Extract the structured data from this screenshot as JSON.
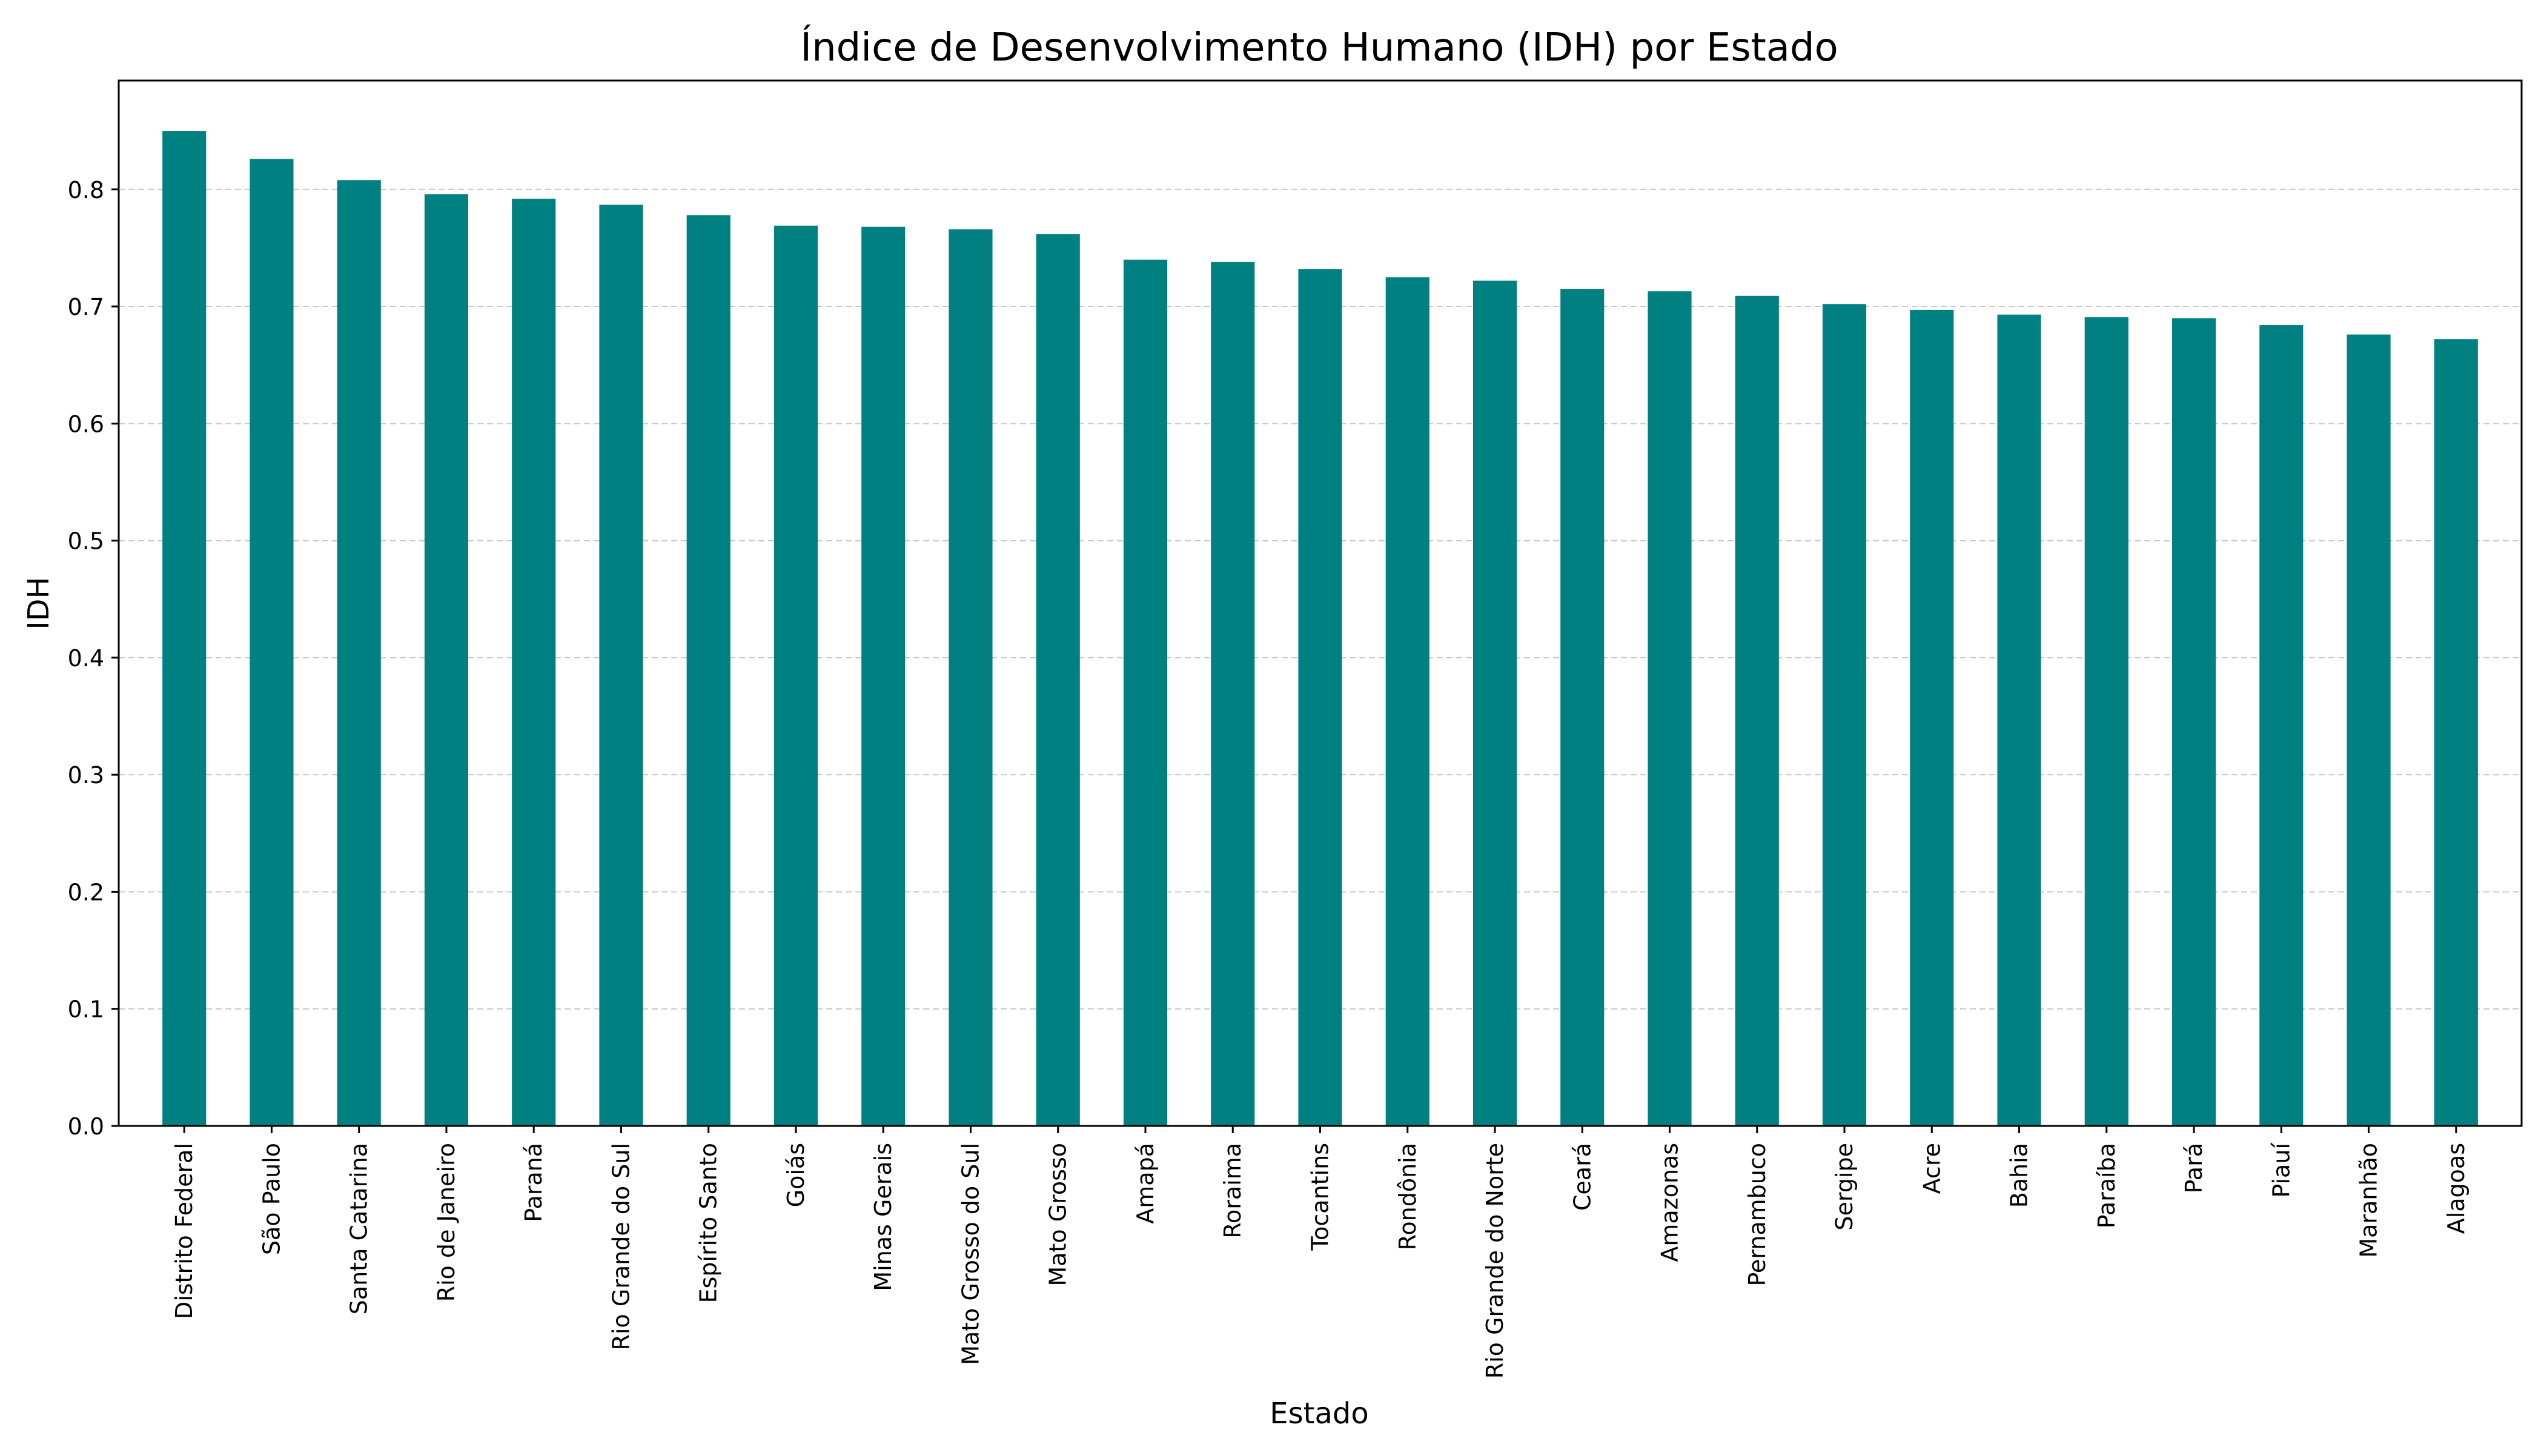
{
  "chart_data": {
    "type": "bar",
    "title": "Índice de Desenvolvimento Humano (IDH) por Estado",
    "xlabel": "Estado",
    "ylabel": "IDH",
    "ylim": [
      0,
      0.893
    ],
    "yticks": [
      "0.0",
      "0.1",
      "0.2",
      "0.3",
      "0.4",
      "0.5",
      "0.6",
      "0.7",
      "0.8"
    ],
    "grid": "y-dashed",
    "bar_color": "#008080",
    "categories": [
      "Distrito Federal",
      "São Paulo",
      "Santa Catarina",
      "Rio de Janeiro",
      "Paraná",
      "Rio Grande do Sul",
      "Espírito Santo",
      "Goiás",
      "Minas Gerais",
      "Mato Grosso do Sul",
      "Mato Grosso",
      "Amapá",
      "Roraima",
      "Tocantins",
      "Rondônia",
      "Rio Grande do Norte",
      "Ceará",
      "Amazonas",
      "Pernambuco",
      "Sergipe",
      "Acre",
      "Bahia",
      "Paraíba",
      "Pará",
      "Piauí",
      "Maranhão",
      "Alagoas"
    ],
    "values": [
      0.85,
      0.826,
      0.808,
      0.796,
      0.792,
      0.787,
      0.778,
      0.769,
      0.768,
      0.766,
      0.762,
      0.74,
      0.738,
      0.732,
      0.725,
      0.722,
      0.715,
      0.713,
      0.709,
      0.702,
      0.697,
      0.693,
      0.691,
      0.69,
      0.684,
      0.676,
      0.672
    ]
  }
}
